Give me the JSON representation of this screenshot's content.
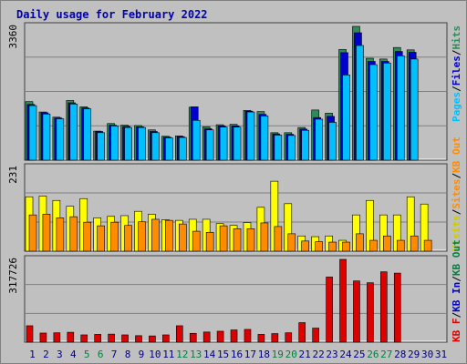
{
  "chart_data": [
    {
      "type": "bar",
      "title": "Daily usage for February 2022",
      "ymax_label": "3360",
      "ylim": [
        0,
        3360
      ],
      "categories": [
        "1",
        "2",
        "3",
        "4",
        "5",
        "6",
        "7",
        "8",
        "9",
        "10",
        "11",
        "12",
        "13",
        "14",
        "15",
        "16",
        "17",
        "18",
        "19",
        "20",
        "21",
        "22",
        "23",
        "24",
        "25",
        "26",
        "27",
        "28",
        "29",
        "30",
        "31"
      ],
      "weekend_days": [
        "5",
        "6",
        "12",
        "13",
        "19",
        "20",
        "26",
        "27"
      ],
      "series": [
        {
          "name": "Hits",
          "color": "#2e8b57",
          "values": [
            1470,
            1210,
            1080,
            1500,
            1340,
            730,
            920,
            880,
            870,
            760,
            600,
            610,
            1330,
            840,
            890,
            900,
            1250,
            1220,
            690,
            690,
            820,
            1260,
            1180,
            2780,
            3360,
            2560,
            2540,
            2830,
            2770,
            0,
            0
          ]
        },
        {
          "name": "Files",
          "color": "#0000cc",
          "values": [
            1400,
            1190,
            1060,
            1440,
            1310,
            720,
            880,
            850,
            840,
            720,
            580,
            590,
            1340,
            790,
            860,
            860,
            1230,
            1150,
            660,
            650,
            780,
            1070,
            1100,
            2700,
            3200,
            2480,
            2480,
            2730,
            2710,
            0,
            0
          ]
        },
        {
          "name": "Pages",
          "color": "#00bfff",
          "values": [
            1370,
            1160,
            1040,
            1410,
            1290,
            690,
            860,
            820,
            820,
            690,
            560,
            570,
            1000,
            760,
            830,
            830,
            1210,
            1110,
            630,
            620,
            750,
            1030,
            950,
            2140,
            2880,
            2400,
            2440,
            2620,
            2540,
            0,
            0
          ]
        }
      ],
      "legend": [
        "Pages",
        "/",
        "Files",
        "/",
        "Hits"
      ]
    },
    {
      "type": "bar",
      "ymax_label": "231",
      "ylim": [
        0,
        231
      ],
      "series": [
        {
          "name": "Visits",
          "color": "#ffff00",
          "values": [
            150,
            152,
            140,
            124,
            145,
            92,
            96,
            98,
            110,
            102,
            87,
            85,
            88,
            88,
            76,
            71,
            79,
            121,
            193,
            131,
            42,
            40,
            42,
            30,
            100,
            140,
            100,
            100,
            150,
            130,
            0,
            0
          ]
        },
        {
          "name": "Sites",
          "color": "#ff8c00",
          "values": [
            100,
            102,
            92,
            95,
            80,
            70,
            80,
            71,
            81,
            88,
            85,
            75,
            55,
            52,
            70,
            62,
            62,
            78,
            68,
            48,
            28,
            26,
            25,
            25,
            48,
            30,
            42,
            30,
            42,
            30,
            0,
            0
          ]
        }
      ],
      "legend": [
        "Visits",
        "/",
        "Sites",
        "/",
        "KB Out"
      ]
    },
    {
      "type": "bar",
      "ymax_label": "317726",
      "ylim": [
        0,
        317726
      ],
      "series": [
        {
          "name": "KB F",
          "color": "#dd0000",
          "values": [
            63000,
            35000,
            36000,
            38000,
            28000,
            30000,
            31000,
            28000,
            25000,
            24000,
            28000,
            63000,
            34000,
            39000,
            42000,
            47000,
            49000,
            30000,
            33000,
            36000,
            75000,
            54000,
            250000,
            317726,
            235000,
            228000,
            270000,
            265000,
            0,
            0,
            0
          ]
        }
      ],
      "legend": [
        "KB F",
        "/",
        "KB In",
        "/",
        "KB Out"
      ]
    }
  ],
  "axis_day_colors": {
    "weekday": "#000080",
    "weekend": "#008040"
  },
  "legend_colors": {
    "Pages": "#00bfff",
    "Files": "#0000cc",
    "Hits": "#2e8b57",
    "Visits": "#cccc00",
    "Sites": "#ff8c00",
    "KB Out": "#ff8c00",
    "KB F": "#dd0000",
    "KB In": "#0000cc",
    "KB Out2": "#008040",
    "slash": "#000000"
  }
}
